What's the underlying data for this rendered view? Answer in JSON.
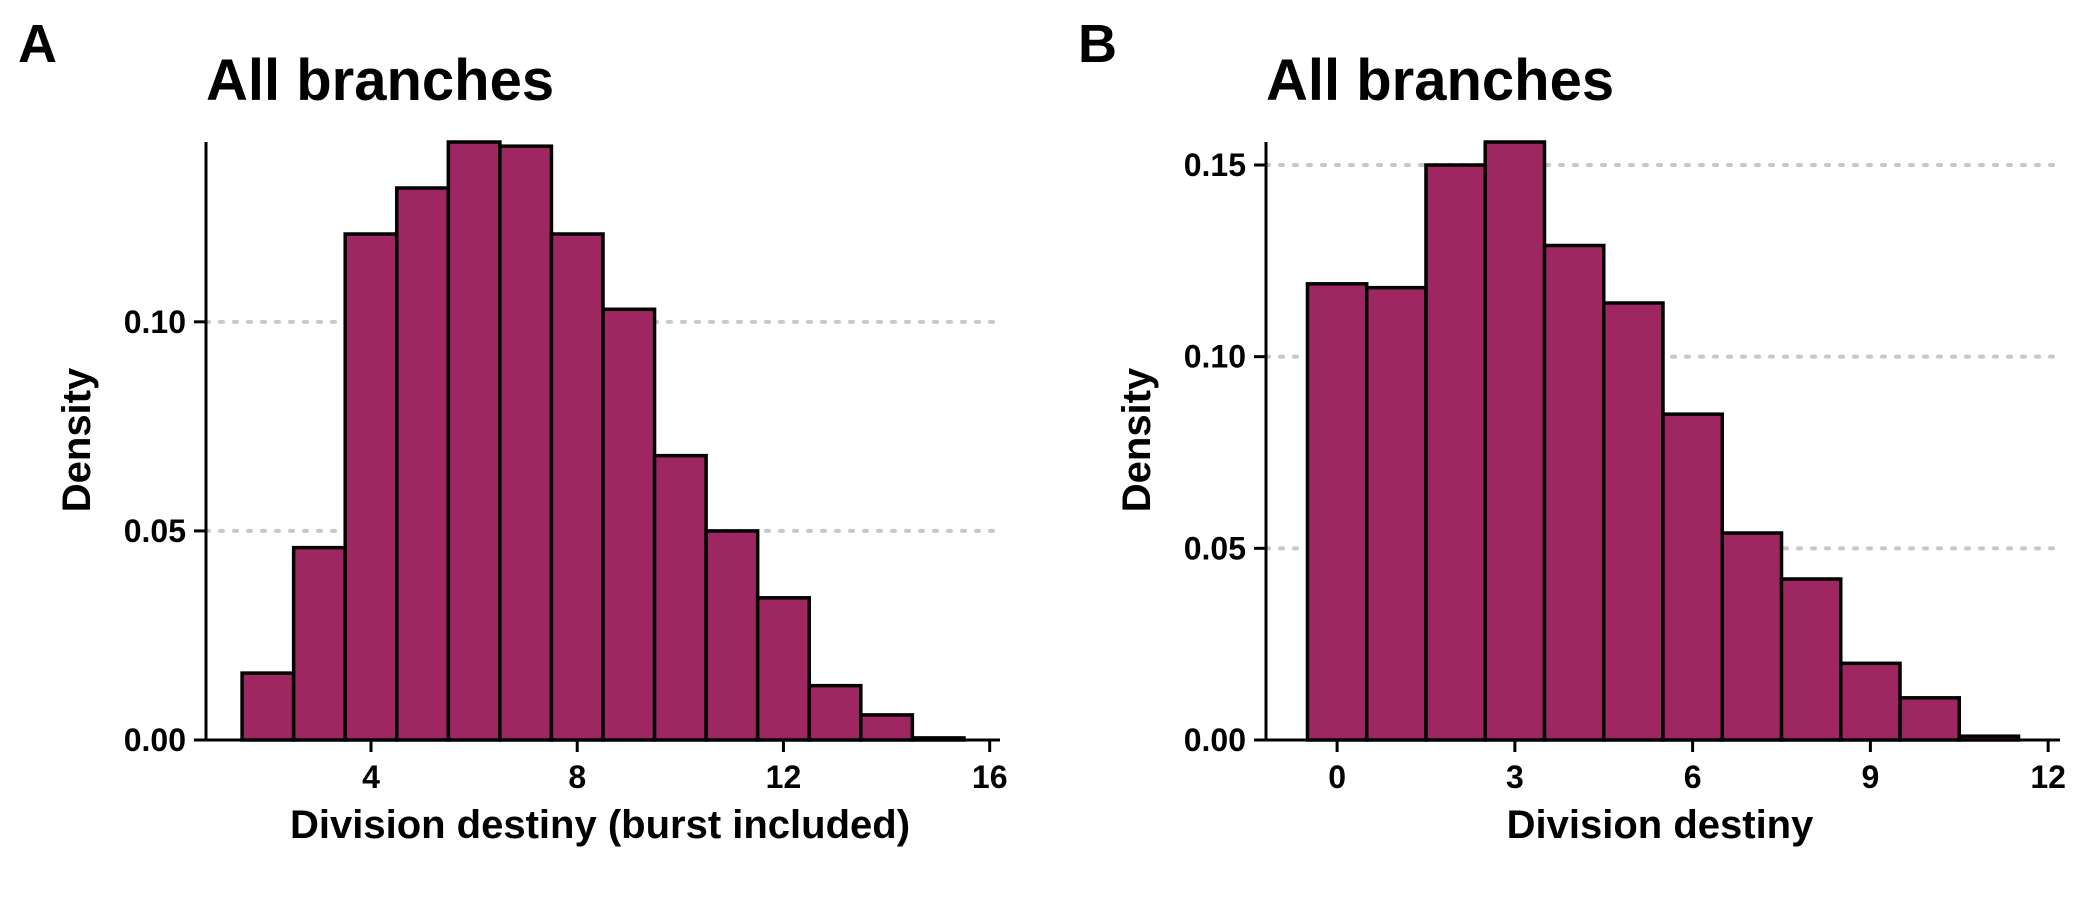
{
  "colors": {
    "bar_fill": "#9E2761",
    "bar_stroke": "#000000",
    "grid": "#c8c8c8"
  },
  "chart_data": [
    {
      "panel_label": "A",
      "type": "bar",
      "title": "All branches",
      "xlabel": "Division destiny (burst included)",
      "ylabel": "Density",
      "xlim": [
        0.8,
        16.2
      ],
      "ylim": [
        0,
        0.143
      ],
      "xticks": [
        4,
        8,
        12,
        16
      ],
      "xtick_labels": [
        "4",
        "8",
        "12",
        "16"
      ],
      "yticks": [
        0,
        0.05,
        0.1
      ],
      "ytick_labels": [
        "0.00",
        "0.05",
        "0.10"
      ],
      "grid": "horizontal dotted",
      "bin_width": 1,
      "categories": [
        2,
        3,
        4,
        5,
        6,
        7,
        8,
        9,
        10,
        11,
        12,
        13,
        14,
        15
      ],
      "values": [
        0.016,
        0.046,
        0.121,
        0.132,
        0.143,
        0.142,
        0.121,
        0.103,
        0.068,
        0.05,
        0.034,
        0.013,
        0.006,
        0.0005
      ]
    },
    {
      "panel_label": "B",
      "type": "bar",
      "title": "All branches",
      "xlabel": "Division destiny",
      "ylabel": "Density",
      "xlim": [
        -1.2,
        12.2
      ],
      "ylim": [
        0,
        0.156
      ],
      "xticks": [
        0,
        3,
        6,
        9,
        12
      ],
      "xtick_labels": [
        "0",
        "3",
        "6",
        "9",
        "12"
      ],
      "yticks": [
        0,
        0.05,
        0.1,
        0.15
      ],
      "ytick_labels": [
        "0.00",
        "0.05",
        "0.10",
        "0.15"
      ],
      "grid": "horizontal dotted",
      "bin_width": 1,
      "categories": [
        0,
        1,
        2,
        3,
        4,
        5,
        6,
        7,
        8,
        9,
        10,
        11
      ],
      "values": [
        0.119,
        0.118,
        0.15,
        0.156,
        0.129,
        0.114,
        0.085,
        0.054,
        0.042,
        0.02,
        0.011,
        0.001
      ]
    }
  ]
}
